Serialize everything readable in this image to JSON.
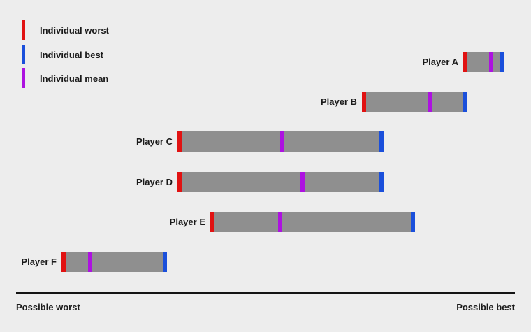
{
  "legend": {
    "items": [
      {
        "name": "worst",
        "label": "Individual worst",
        "color": "#e11212"
      },
      {
        "name": "best",
        "label": "Individual best",
        "color": "#1a4fdb"
      },
      {
        "name": "mean",
        "label": "Individual mean",
        "color": "#ad12e0"
      }
    ]
  },
  "axis": {
    "left_label": "Possible worst",
    "right_label": "Possible best"
  },
  "colors": {
    "background": "#ededed",
    "bar": "#8f8f8f",
    "worst": "#e11212",
    "best": "#1a4fdb",
    "mean": "#ad12e0",
    "text": "#1a1a1a",
    "axis_line": "#141414"
  },
  "chart_data": {
    "type": "bar",
    "subtype": "horizontal-range-bar",
    "title": "",
    "xlabel_min": "Possible worst",
    "xlabel_max": "Possible best",
    "xlim": [
      0,
      100
    ],
    "grid": false,
    "legend_position": "top-left",
    "legend_entries": [
      "Individual worst",
      "Individual best",
      "Individual mean"
    ],
    "players": [
      {
        "label": "Player A",
        "worst": 90.0,
        "mean": 95.3,
        "best": 97.5
      },
      {
        "label": "Player B",
        "worst": 69.7,
        "mean": 83.0,
        "best": 90.0
      },
      {
        "label": "Player C",
        "worst": 32.8,
        "mean": 53.4,
        "best": 73.2
      },
      {
        "label": "Player D",
        "worst": 32.8,
        "mean": 57.4,
        "best": 73.2
      },
      {
        "label": "Player E",
        "worst": 39.4,
        "mean": 53.0,
        "best": 79.6
      },
      {
        "label": "Player F",
        "worst": 9.5,
        "mean": 14.9,
        "best": 29.8
      }
    ]
  }
}
